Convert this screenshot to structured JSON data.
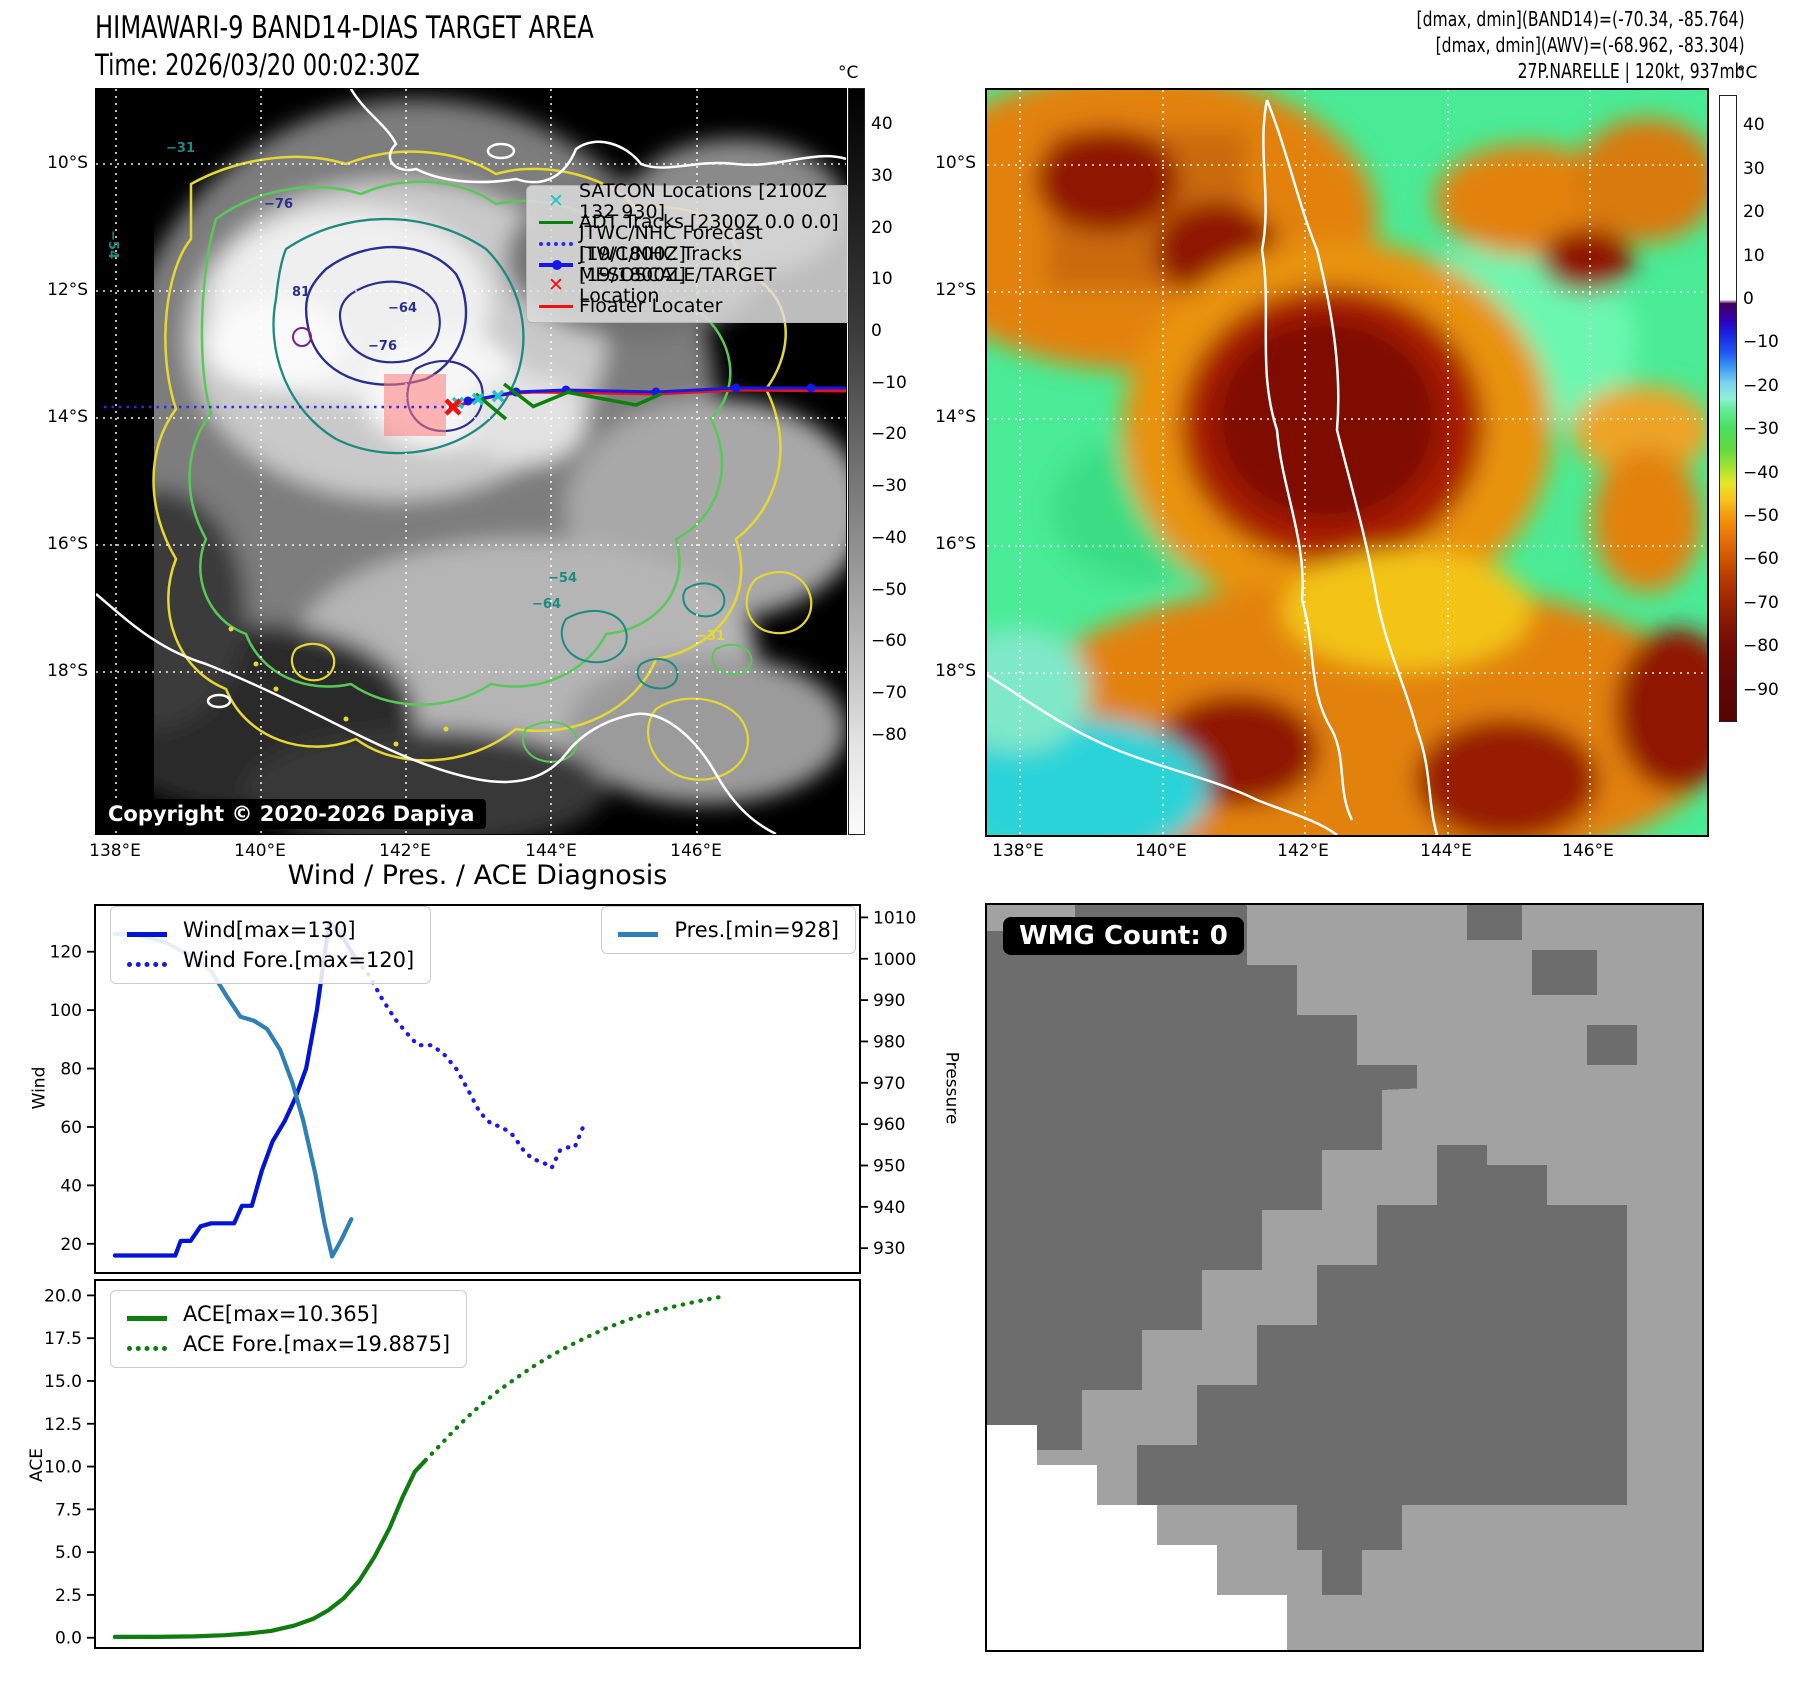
{
  "header": {
    "title_line1": "HIMAWARI-9 BAND14-DIAS TARGET AREA",
    "title_line2": "Time: 2026/03/20 00:02:30Z",
    "info_line1": "[dmax, dmin](BAND14)=(-70.34, -85.764)",
    "info_line2": "[dmax, dmin](AWV)=(-68.962, -83.304)",
    "info_line3": "27P.NARELLE | 120kt, 937mb"
  },
  "left_panel": {
    "lat_ticks": [
      "10°S",
      "12°S",
      "14°S",
      "16°S",
      "18°S"
    ],
    "lon_ticks": [
      "138°E",
      "140°E",
      "142°E",
      "144°E",
      "146°E"
    ],
    "legend": [
      {
        "label": "SATCON Locations [2100Z 132 930]"
      },
      {
        "label": "ADT Tracks [2300Z 0.0 0.0]"
      },
      {
        "label": "JTWC/NHC Forecast [19/1800Z]"
      },
      {
        "label": "JTWC/NHC Tracks [19/1800Z]"
      },
      {
        "label": "MESOSCALE/TARGET Location"
      },
      {
        "label": "Floater Locater"
      }
    ],
    "copyright": "Copyright © 2020-2026 Dapiya",
    "colorbar": {
      "unit": "°C",
      "ticks": [
        "40",
        "30",
        "20",
        "10",
        "0",
        "−10",
        "−20",
        "−30",
        "−40",
        "−50",
        "−60",
        "−70",
        "−80"
      ]
    },
    "contour_labels": [
      "−31",
      "−76",
      "81",
      "−64",
      "−76",
      "−54",
      "−64",
      "−31",
      "−54"
    ]
  },
  "right_panel": {
    "lat_ticks": [
      "10°S",
      "12°S",
      "14°S",
      "16°S",
      "18°S"
    ],
    "lon_ticks": [
      "138°E",
      "140°E",
      "142°E",
      "144°E",
      "146°E"
    ],
    "colorbar": {
      "unit": "°C",
      "ticks": [
        "40",
        "30",
        "20",
        "10",
        "0",
        "−10",
        "−20",
        "−30",
        "−40",
        "−50",
        "−60",
        "−70",
        "−80",
        "−90"
      ]
    }
  },
  "wmg": {
    "badge": "WMG Count: 0"
  },
  "chart_data": [
    {
      "type": "line",
      "title": "Wind / Pres. / ACE Diagnosis",
      "ylabel_left": "Wind",
      "ylabel_right": "Pressure",
      "ylim_left": [
        10,
        136
      ],
      "yticks_left": [
        20,
        40,
        60,
        80,
        100,
        120
      ],
      "ylim_right": [
        924,
        1013
      ],
      "yticks_right": [
        930,
        940,
        950,
        960,
        970,
        980,
        990,
        1000,
        1010
      ],
      "xlim": [
        0,
        1
      ],
      "series": [
        {
          "name": "Wind[max=130]",
          "axis": "left",
          "style": "solid",
          "color": "#0013d6",
          "x": [
            0.026,
            0.055,
            0.085,
            0.105,
            0.112,
            0.125,
            0.138,
            0.152,
            0.168,
            0.182,
            0.192,
            0.205,
            0.218,
            0.232,
            0.248,
            0.262,
            0.276,
            0.29,
            0.306,
            0.324,
            0.342
          ],
          "values": [
            16,
            16,
            16,
            16,
            21,
            21,
            26,
            27,
            27,
            27,
            33,
            33,
            45,
            55,
            62,
            70,
            80,
            100,
            130,
            125,
            117
          ]
        },
        {
          "name": "Wind Fore.[max=120]",
          "axis": "left",
          "style": "dotted",
          "color": "#1a1ae6",
          "x": [
            0.342,
            0.358,
            0.375,
            0.392,
            0.408,
            0.422,
            0.44,
            0.456,
            0.472,
            0.487,
            0.503,
            0.518,
            0.532,
            0.547,
            0.56,
            0.572,
            0.585,
            0.597,
            0.608,
            0.617,
            0.627,
            0.638
          ],
          "values": [
            117,
            112,
            104,
            97,
            92,
            88,
            88,
            85,
            80,
            73,
            65,
            61,
            60,
            57,
            52,
            49,
            48,
            46,
            52,
            53,
            53,
            60
          ]
        },
        {
          "name": "Pres.[min=928]",
          "axis": "right",
          "style": "solid",
          "color": "#2e7fb5",
          "x": [
            0.026,
            0.05,
            0.072,
            0.092,
            0.112,
            0.132,
            0.152,
            0.172,
            0.19,
            0.208,
            0.225,
            0.242,
            0.258,
            0.272,
            0.288,
            0.3,
            0.31,
            0.322,
            0.335
          ],
          "values": [
            1006,
            1006,
            1005,
            1004,
            1002,
            1000,
            997,
            991,
            986,
            985,
            983,
            978,
            970,
            961,
            948,
            936,
            928,
            932,
            937
          ]
        }
      ]
    },
    {
      "type": "line",
      "title": "",
      "ylabel_left": "ACE",
      "ylim_left": [
        -0.6,
        20.9
      ],
      "yticks_left": [
        "0.0",
        "2.5",
        "5.0",
        "7.5",
        "10.0",
        "12.5",
        "15.0",
        "17.5",
        "20.0"
      ],
      "xlim": [
        0,
        1
      ],
      "series": [
        {
          "name": "ACE[max=10.365]",
          "axis": "left",
          "style": "solid",
          "color": "#0e7c0e",
          "x": [
            0.026,
            0.08,
            0.13,
            0.17,
            0.2,
            0.23,
            0.26,
            0.285,
            0.305,
            0.325,
            0.345,
            0.365,
            0.385,
            0.402,
            0.418,
            0.432
          ],
          "values": [
            0.05,
            0.05,
            0.08,
            0.15,
            0.25,
            0.4,
            0.7,
            1.1,
            1.6,
            2.3,
            3.3,
            4.7,
            6.4,
            8.2,
            9.7,
            10.365
          ]
        },
        {
          "name": "ACE Fore.[max=19.8875]",
          "axis": "left",
          "style": "dotted",
          "color": "#0e7c0e",
          "x": [
            0.432,
            0.45,
            0.468,
            0.487,
            0.507,
            0.528,
            0.55,
            0.573,
            0.597,
            0.622,
            0.647,
            0.672,
            0.698,
            0.727,
            0.757,
            0.787,
            0.815
          ],
          "values": [
            10.365,
            11.2,
            12.05,
            12.9,
            13.7,
            14.45,
            15.15,
            15.85,
            16.5,
            17.1,
            17.65,
            18.15,
            18.6,
            19.0,
            19.35,
            19.65,
            19.8875
          ]
        }
      ]
    }
  ]
}
